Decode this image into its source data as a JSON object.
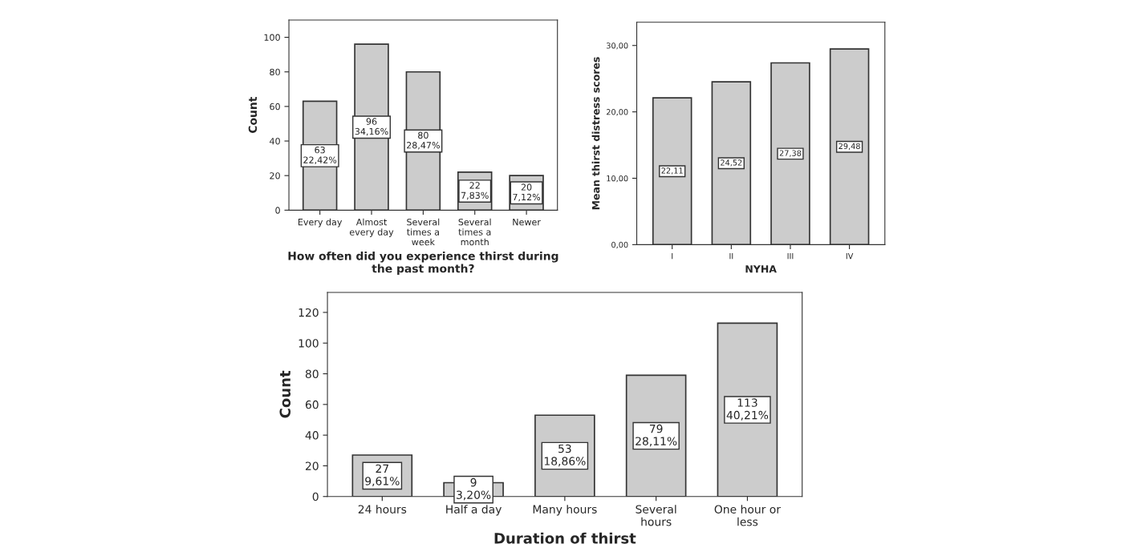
{
  "chart_data": [
    {
      "type": "bar",
      "categories": [
        "Every day",
        "Almost\nevery day",
        "Several\ntimes a\nweek",
        "Several\ntimes a\nmonth",
        "Newer"
      ],
      "values": [
        63,
        96,
        80,
        22,
        20
      ],
      "value_labels": [
        "63\n22,42%",
        "96\n34,16%",
        "80\n28,47%",
        "22\n7,83%",
        "20\n7,12%"
      ],
      "color": "#cccccc",
      "ylim": [
        0,
        110
      ],
      "yticks": [
        0,
        20,
        40,
        60,
        80,
        100
      ],
      "xlabel": "How often did you experience thirst during\nthe past month?",
      "ylabel": "Count",
      "grid": false,
      "legend": false
    },
    {
      "type": "bar",
      "categories": [
        "I",
        "II",
        "III",
        "IV"
      ],
      "values": [
        22.11,
        24.52,
        27.38,
        29.48
      ],
      "value_labels": [
        "22,11",
        "24,52",
        "27,38",
        "29,48"
      ],
      "color": "#cccccc",
      "ylim": [
        0,
        33.5
      ],
      "yticks": [
        {
          "value": 0,
          "label": "0,00"
        },
        {
          "value": 10,
          "label": "10,00"
        },
        {
          "value": 20,
          "label": "20,00"
        },
        {
          "value": 30,
          "label": "30,00"
        }
      ],
      "xlabel": "NYHA",
      "ylabel": "Mean thirst distress scores",
      "grid": false,
      "legend": false
    },
    {
      "type": "bar",
      "categories": [
        "24 hours",
        "Half a day",
        "Many hours",
        "Several\nhours",
        "One hour or\nless"
      ],
      "values": [
        27,
        9,
        53,
        79,
        113
      ],
      "value_labels": [
        "27\n9,61%",
        "9\n3,20%",
        "53\n18,86%",
        "79\n28,11%",
        "113\n40,21%"
      ],
      "color": "#cccccc",
      "ylim": [
        0,
        133
      ],
      "yticks": [
        0,
        20,
        40,
        60,
        80,
        100,
        120
      ],
      "xlabel": "Duration of thirst",
      "ylabel": "Count",
      "grid": false,
      "legend": false
    }
  ]
}
